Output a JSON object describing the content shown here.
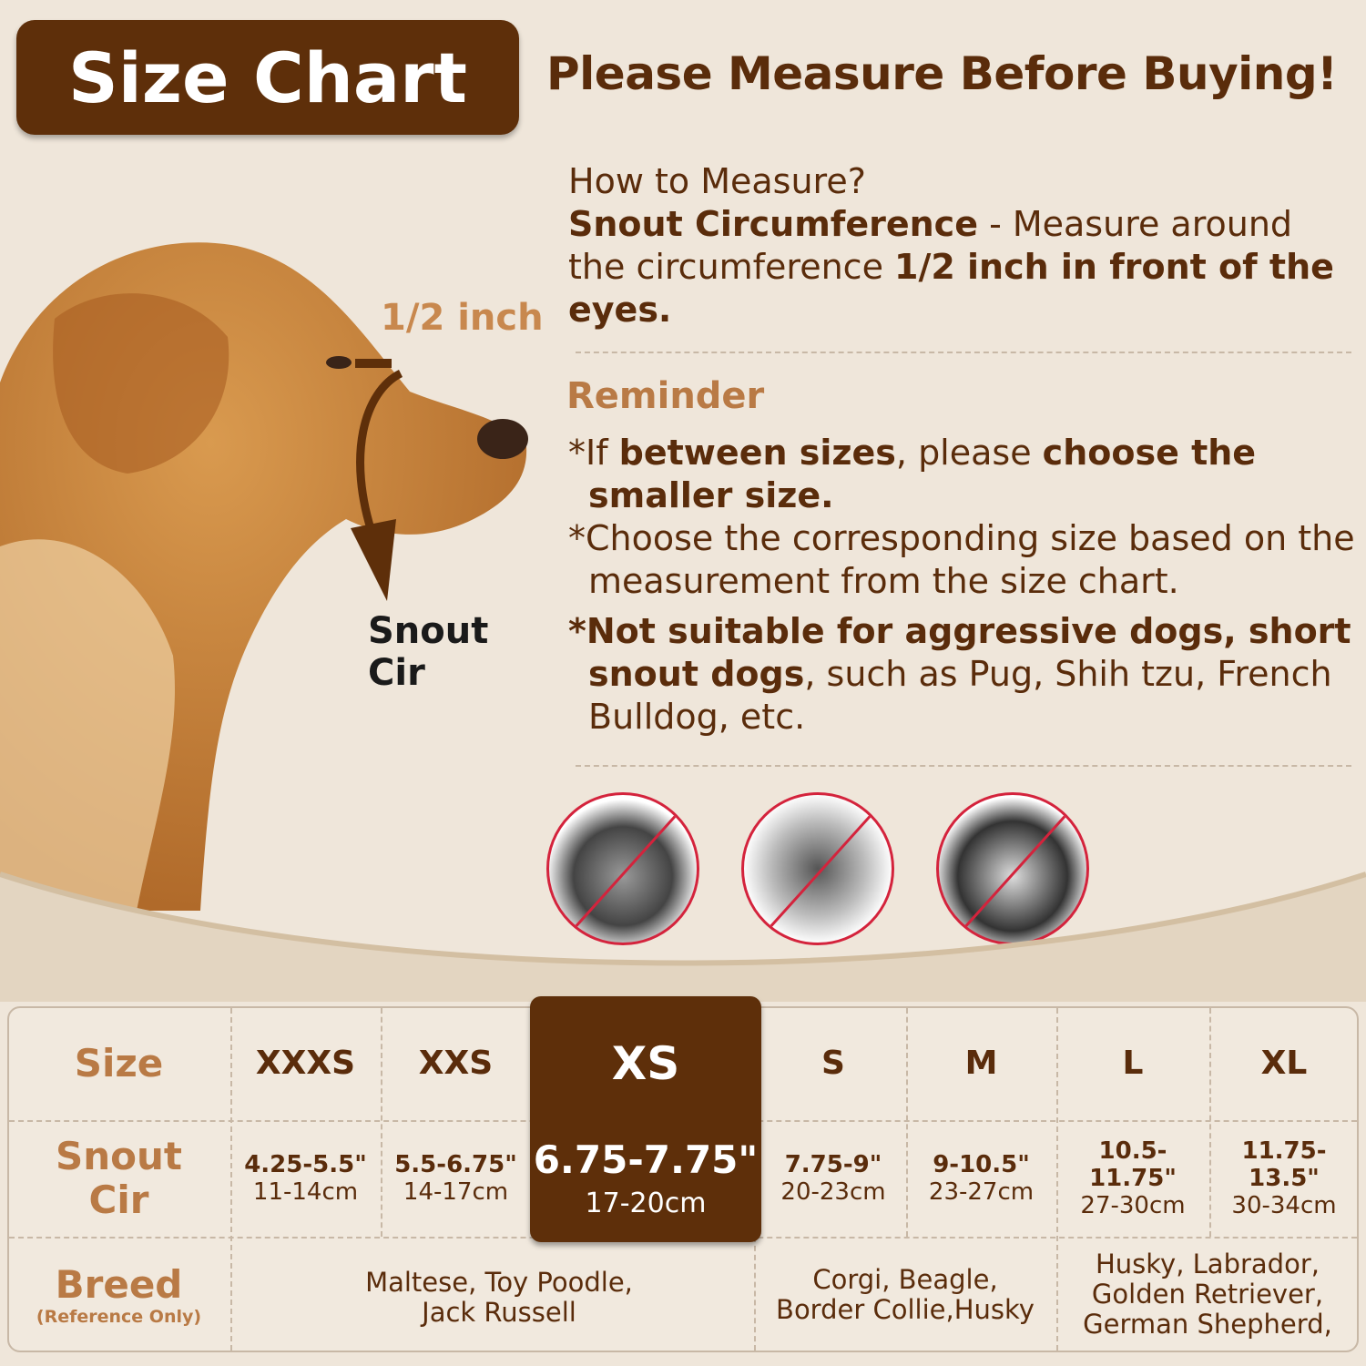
{
  "header": {
    "title": "Size Chart",
    "headline": "Please Measure Before Buying!"
  },
  "diagram": {
    "half_inch_label": "1/2 inch",
    "snout_label_line1": "Snout",
    "snout_label_line2": "Cir"
  },
  "how_to": {
    "heading": "How to Measure?",
    "term": "Snout Circumference",
    "text1": " - Measure around the circumference ",
    "bold2": "1/2 inch in front of the eyes."
  },
  "reminder": {
    "heading": "Reminder",
    "r1_a": "*If ",
    "r1_b": "between sizes",
    "r1_c": ", please ",
    "r1_d": "choose the smaller size.",
    "r2": "*Choose the corresponding size based on the measurement from the size chart.",
    "r3_a": "*Not suitable for aggressive dogs, short snout dogs",
    "r3_b": ", such as Pug, Shih tzu, French Bulldog, etc."
  },
  "colors": {
    "brand_brown": "#5e2f0a",
    "accent_tan": "#b97a45",
    "background": "#efe6da",
    "prohibit_red": "#d4233c"
  },
  "table": {
    "row_labels": {
      "size": "Size",
      "snout": "Snout Cir",
      "breed": "Breed",
      "breed_note": "(Reference Only)"
    },
    "sizes": [
      {
        "name": "XXXS",
        "inch": "4.25-5.5\"",
        "cm": "11-14cm"
      },
      {
        "name": "XXS",
        "inch": "5.5-6.75\"",
        "cm": "14-17cm"
      },
      {
        "name": "XS",
        "inch": "6.75-7.75\"",
        "cm": "17-20cm",
        "highlighted": true
      },
      {
        "name": "S",
        "inch": "7.75-9\"",
        "cm": "20-23cm"
      },
      {
        "name": "M",
        "inch": "9-10.5\"",
        "cm": "23-27cm"
      },
      {
        "name": "L",
        "inch": "10.5-11.75\"",
        "cm": "27-30cm"
      },
      {
        "name": "XL",
        "inch": "11.75-13.5\"",
        "cm": "30-34cm"
      }
    ],
    "breeds": [
      {
        "line1": "Maltese, Toy Poodle,",
        "line2": "Jack Russell"
      },
      {
        "line1": "Corgi, Beagle,",
        "line2": "Border Collie,Husky"
      },
      {
        "line1": "Husky, Labrador,",
        "line2": "Golden Retriever,",
        "line3": "German Shepherd,"
      }
    ]
  }
}
